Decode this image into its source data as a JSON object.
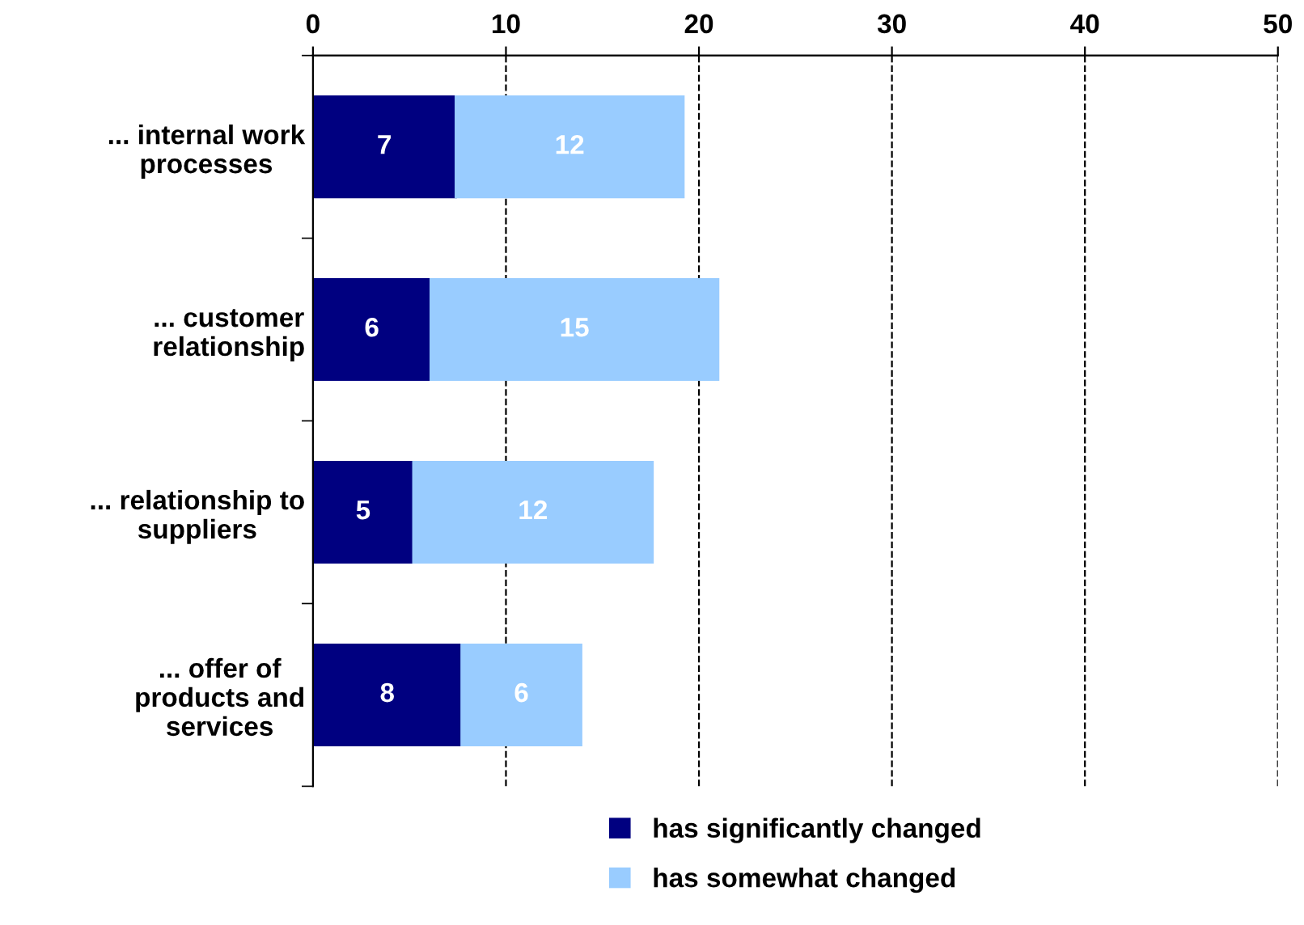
{
  "chart_data": {
    "type": "bar",
    "orientation": "horizontal",
    "stacked": true,
    "categories": [
      "... internal work\nprocesses",
      "... customer\nrelationship",
      "... relationship to\nsuppliers",
      "... offer of\nproducts and\nservices"
    ],
    "series": [
      {
        "name": "has significantly changed",
        "color": "#000080",
        "values": [
          7.4,
          6.1,
          5.2,
          7.7
        ],
        "value_labels": [
          "7",
          "6",
          "5",
          "8"
        ]
      },
      {
        "name": "has somewhat changed",
        "color": "#99ccff",
        "values": [
          11.8,
          14.9,
          12.4,
          6.2
        ],
        "value_labels": [
          "12",
          "15",
          "12",
          "6"
        ]
      }
    ],
    "xlim": [
      0,
      50
    ],
    "xticks": [
      0,
      10,
      20,
      30,
      40,
      50
    ],
    "grid": "x",
    "legend": "bottom"
  }
}
